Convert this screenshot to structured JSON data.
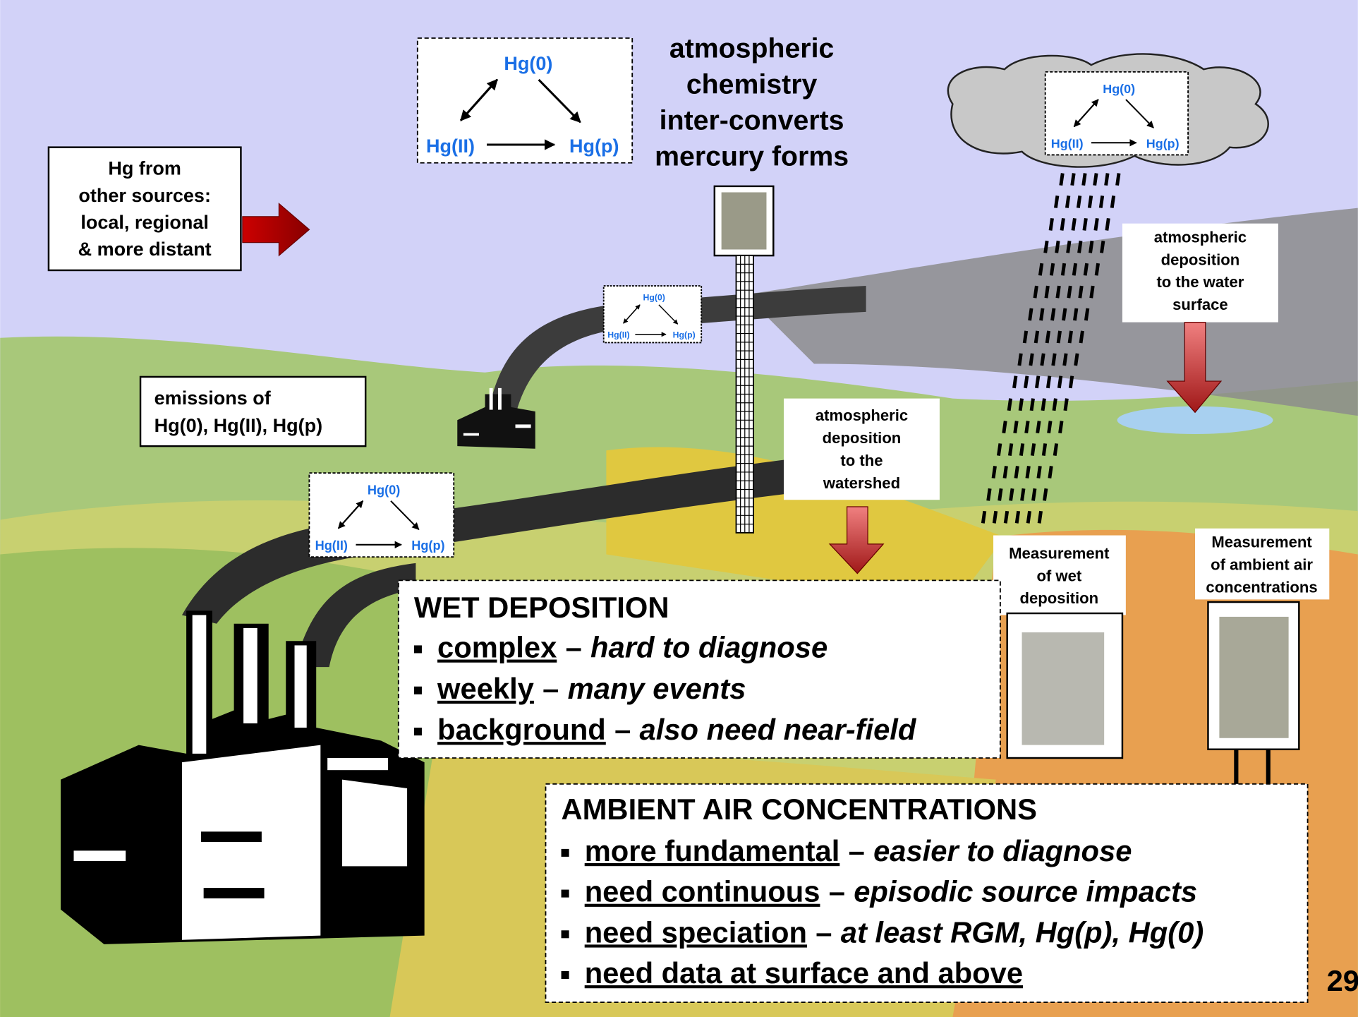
{
  "species": {
    "top": "Hg(0)",
    "left": "Hg(II)",
    "right": "Hg(p)"
  },
  "other_sources": {
    "lines": [
      "Hg from",
      "other sources:",
      "local, regional",
      "& more distant"
    ]
  },
  "chemistry": {
    "lines": [
      "atmospheric",
      "chemistry",
      "inter-converts",
      "mercury forms"
    ]
  },
  "emissions": {
    "lines": [
      "emissions  of",
      "Hg(0), Hg(II), Hg(p)"
    ]
  },
  "watershed": {
    "lines": [
      "atmospheric",
      "deposition",
      "to the",
      "watershed"
    ]
  },
  "water_surface": {
    "lines": [
      "atmospheric",
      "deposition",
      "to the water",
      "surface"
    ]
  },
  "wet_measurement": {
    "lines": [
      "Measurement",
      "of wet",
      "deposition"
    ]
  },
  "ambient_measurement": {
    "lines": [
      "Measurement",
      "of ambient air",
      "concentrations"
    ]
  },
  "wet_deposition": {
    "title": "WET DEPOSITION",
    "bullets": [
      {
        "term": "complex",
        "dash": "–",
        "note": "hard to diagnose"
      },
      {
        "term": "weekly",
        "dash": "–",
        "note": "many events"
      },
      {
        "term": "background",
        "dash": "–",
        "note": "also need near-field"
      }
    ]
  },
  "ambient_air": {
    "title": "AMBIENT AIR CONCENTRATIONS",
    "bullets": [
      {
        "term": "more fundamental",
        "dash": "–",
        "note": "easier to diagnose"
      },
      {
        "term": "need continuous",
        "dash": "–",
        "note": "episodic source impacts"
      },
      {
        "term": "need speciation",
        "dash": "–",
        "note": "at least RGM, Hg(p), Hg(0)"
      },
      {
        "term": "need data at surface and above"
      }
    ]
  },
  "page_number": "29"
}
